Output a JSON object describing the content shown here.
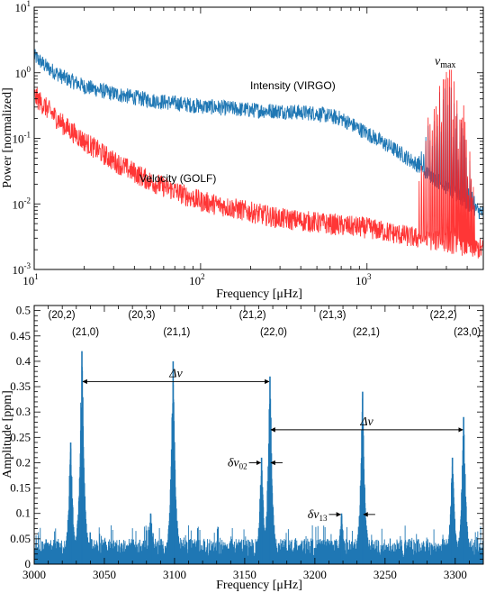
{
  "chart_data": [
    {
      "type": "line",
      "xlabel": "Frequency [μHz]",
      "ylabel": "Power [normalized]",
      "xscale": "log",
      "yscale": "log",
      "xlim": [
        10,
        5000
      ],
      "ylim": [
        0.001,
        10
      ],
      "x_ticks": [
        "10",
        "10",
        "10"
      ],
      "x_tick_exps": [
        "1",
        "2",
        "3"
      ],
      "y_ticks": [
        "10",
        "10",
        "10",
        "10",
        "10"
      ],
      "y_tick_exps": [
        "1",
        "0",
        "-1",
        "-2",
        "-3"
      ],
      "series": [
        {
          "name": "Intensity (VIRGO)",
          "color": "#1f77b4",
          "points": [
            [
              10,
              1.8
            ],
            [
              12,
              1.2
            ],
            [
              15,
              0.85
            ],
            [
              20,
              0.62
            ],
            [
              30,
              0.48
            ],
            [
              50,
              0.38
            ],
            [
              100,
              0.31
            ],
            [
              200,
              0.27
            ],
            [
              300,
              0.26
            ],
            [
              500,
              0.24
            ],
            [
              700,
              0.2
            ],
            [
              1000,
              0.12
            ],
            [
              1500,
              0.065
            ],
            [
              2000,
              0.04
            ],
            [
              2500,
              0.025
            ],
            [
              3000,
              0.018
            ],
            [
              4000,
              0.01
            ],
            [
              5000,
              0.007
            ]
          ]
        },
        {
          "name": "Velocity (GOLF)",
          "color": "#ff2020",
          "points": [
            [
              10,
              0.45
            ],
            [
              12,
              0.28
            ],
            [
              15,
              0.16
            ],
            [
              20,
              0.09
            ],
            [
              30,
              0.045
            ],
            [
              50,
              0.022
            ],
            [
              100,
              0.011
            ],
            [
              200,
              0.0075
            ],
            [
              300,
              0.006
            ],
            [
              500,
              0.0052
            ],
            [
              700,
              0.0047
            ],
            [
              1000,
              0.0043
            ],
            [
              1500,
              0.0035
            ],
            [
              2000,
              0.003
            ],
            [
              2500,
              0.0028
            ],
            [
              3000,
              0.0026
            ],
            [
              5000,
              0.002
            ]
          ]
        }
      ],
      "p_mode_hump": {
        "center": 3000,
        "peak": 1.0
      },
      "annotations": {
        "numax": "ν",
        "numax_sub": "max",
        "virgo": "Intensity (VIRGO)",
        "golf": "Velocity (GOLF)"
      }
    },
    {
      "type": "line",
      "xlabel": "Frequency [μHz]",
      "ylabel": "Amplitude [ppm]",
      "xlim": [
        3000,
        3320
      ],
      "ylim": [
        0,
        0.51
      ],
      "x_ticks": [
        3000,
        3050,
        3100,
        3150,
        3200,
        3250,
        3300
      ],
      "y_ticks": [
        0,
        0.05,
        0.1,
        0.15,
        0.2,
        0.25,
        0.3,
        0.35,
        0.4,
        0.45,
        0.5
      ],
      "color": "#1f77b4",
      "noise_level": 0.04,
      "peaks": [
        {
          "x": 3026,
          "y": 0.24
        },
        {
          "x": 3034,
          "y": 0.42
        },
        {
          "x": 3083,
          "y": 0.1
        },
        {
          "x": 3099,
          "y": 0.4
        },
        {
          "x": 3162,
          "y": 0.21
        },
        {
          "x": 3168,
          "y": 0.37
        },
        {
          "x": 3219,
          "y": 0.1
        },
        {
          "x": 3234,
          "y": 0.34
        },
        {
          "x": 3298,
          "y": 0.21
        },
        {
          "x": 3306,
          "y": 0.29
        }
      ],
      "mode_labels": [
        {
          "text": "(20,2)",
          "x": 3026,
          "row": 1
        },
        {
          "text": "(21,0)",
          "x": 3034,
          "row": 2
        },
        {
          "text": "(20,3)",
          "x": 3083,
          "row": 1
        },
        {
          "text": "(21,1)",
          "x": 3099,
          "row": 2
        },
        {
          "text": "(21,2)",
          "x": 3162,
          "row": 1
        },
        {
          "text": "(22,0)",
          "x": 3168,
          "row": 2
        },
        {
          "text": "(21,3)",
          "x": 3219,
          "row": 1
        },
        {
          "text": "(22,1)",
          "x": 3234,
          "row": 2
        },
        {
          "text": "(22,2)",
          "x": 3298,
          "row": 1
        },
        {
          "text": "(23,0)",
          "x": 3306,
          "row": 2
        }
      ],
      "spacings": [
        {
          "label": "Δν",
          "x1": 3034,
          "x2": 3168,
          "y": 0.36
        },
        {
          "label": "Δν",
          "x1": 3168,
          "x2": 3306,
          "y": 0.265
        }
      ],
      "small_spacings": [
        {
          "label": "δν",
          "sub": "02",
          "x1": 3162,
          "x2": 3168,
          "y": 0.2
        },
        {
          "label": "δν",
          "sub": "13",
          "x1": 3219,
          "x2": 3234,
          "y": 0.098
        }
      ]
    }
  ]
}
